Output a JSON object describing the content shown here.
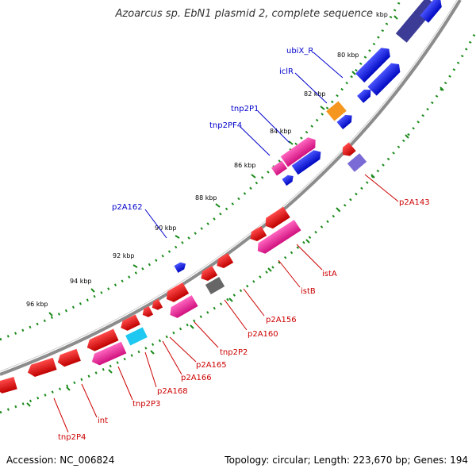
{
  "title": "Azoarcus sp. EbN1 plasmid 2, complete sequence",
  "footer": {
    "accession": "Accession: NC_006824",
    "summary": "Topology: circular; Length: 223,670 bp; Genes: 194"
  },
  "colors": {
    "backbone": "#8c8c8c",
    "ticks": "#1a8a1a",
    "blue_gene": "#0a14e6",
    "red_gene": "#e60a0a",
    "pink_gene": "#ee1e9a",
    "orange_gene": "#f5961e",
    "gray_gene": "#666666",
    "cyan_gene": "#1ec8f0",
    "purple_gene": "#7a6ad6",
    "navy_gene": "#3c3c96",
    "label_blue": "#0000cc",
    "label_red": "#cc0000"
  },
  "kbp_labels": [
    "kbp",
    "80 kbp",
    "82 kbp",
    "84 kbp",
    "86 kbp",
    "88 kbp",
    "90 kbp",
    "92 kbp",
    "94 kbp",
    "96 kbp"
  ],
  "gene_labels_blue": [
    "ubiX_R",
    "iclR",
    "tnp2P1",
    "tnp2PF4",
    "p2A162"
  ],
  "gene_labels_red": [
    "p2A143",
    "istA",
    "istB",
    "p2A156",
    "p2A160",
    "tnp2P2",
    "p2A165",
    "p2A166",
    "p2A168",
    "tnp2P3",
    "int",
    "tnp2P4"
  ]
}
